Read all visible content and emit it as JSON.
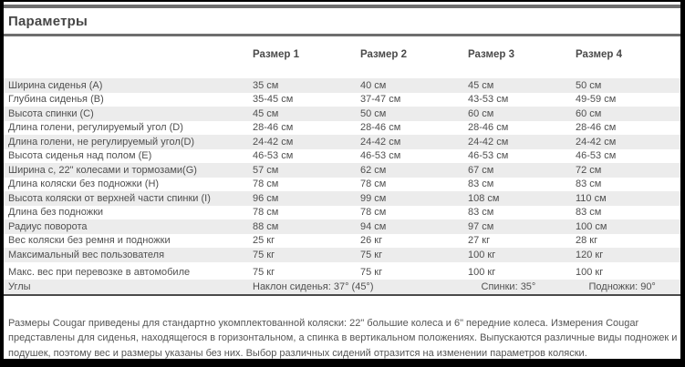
{
  "page": {
    "title": "Параметры"
  },
  "table": {
    "headers": [
      "Размер 1",
      "Размер 2",
      "Размер 3",
      "Размер 4"
    ],
    "rows": [
      {
        "label": "Ширина сиденья (A)",
        "values": [
          "35 см",
          "40 см",
          "45 см",
          "50 см"
        ]
      },
      {
        "label": "Глубина сиденья (B)",
        "values": [
          "35-45 см",
          "37-47 см",
          "43-53 см",
          "49-59 см"
        ]
      },
      {
        "label": "Высота спинки (C)",
        "values": [
          "45 см",
          "50 см",
          "60 см",
          "60 см"
        ]
      },
      {
        "label": "Длина голени, регулируемый угол (D)",
        "values": [
          "28-46 см",
          "28-46 см",
          "28-46 см",
          "28-46 см"
        ]
      },
      {
        "label": "Длина голени, не регулируемый угол(D)",
        "values": [
          "24-42 см",
          "24-42 см",
          "24-42 см",
          "24-42 см"
        ]
      },
      {
        "label": "Высота сиденья над полом (E)",
        "values": [
          "46-53 см",
          "46-53 см",
          "46-53 см",
          "46-53 см"
        ]
      },
      {
        "label": "Ширина с, 22\" колесами и тормозами(G)",
        "values": [
          "57 см",
          "62 см",
          "67 см",
          "72 см"
        ]
      },
      {
        "label": "Длина коляски без подножки (H)",
        "values": [
          "78 см",
          "78 см",
          "83 см",
          "83 см"
        ]
      },
      {
        "label": "Высота коляски от верхней части спинки (I)",
        "values": [
          "96 см",
          "99 см",
          "108 см",
          "110 см"
        ]
      },
      {
        "label": "Длина без подножки",
        "values": [
          "78 см",
          "78 см",
          "83 см",
          "83 см"
        ]
      },
      {
        "label": "Радиус поворота",
        "values": [
          "88 см",
          "94 см",
          "97 см",
          "100 см"
        ]
      },
      {
        "label": "Вес коляски без ремня и подножки",
        "values": [
          "25 кг",
          "26 кг",
          "27 кг",
          "28 кг"
        ]
      },
      {
        "label": "Максимальный вес пользователя",
        "values": [
          "75 кг",
          "75 кг",
          "100 кг",
          "120 кг"
        ]
      },
      {
        "label": "Макс. вес при перевозке в автомобиле",
        "values": [
          "75 кг",
          "75 кг",
          "100 кг",
          "100 кг"
        ]
      },
      {
        "label": "Углы",
        "values": [
          "Наклон сиденья: 37° (45°)",
          "",
          "Спинки: 35°",
          "Подножки: 90°"
        ]
      }
    ]
  },
  "footnote": {
    "text": "Размеры Cougar приведены для стандартно укомплектованной коляски: 22\" большие колеса и 6\" передние колеса. Измерения Cougar представлены для сиденья, находящегося в горизонтальном, а спинка в вертикальном положениях. Выпускаются различные виды подножек и подушек, поэтому вес и размеры указаны без них. Выбор различных сидений отразится на изменении параметров коляски."
  },
  "colors": {
    "frame": "#000000",
    "row_stripe": "#ececec",
    "text": "#4f4f4f",
    "title_text": "#474747",
    "rule": "#6e6e6e",
    "table_bottom_border": "#4a4a4a"
  }
}
